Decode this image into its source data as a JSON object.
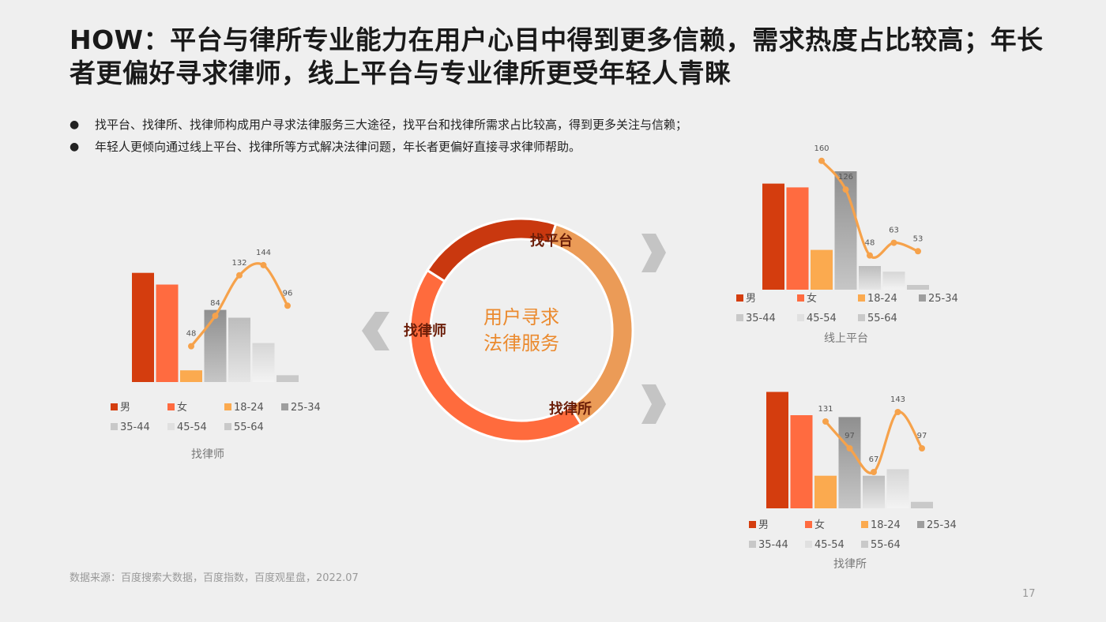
{
  "title": "HOW：平台与律所专业能力在用户心目中得到更多信赖，需求热度占比较高；年长者更偏好寻求律师，线上平台与专业律所更受年轻人青睐",
  "bullets": [
    "找平台、找律所、找律师构成用户寻求法律服务三大途径，找平台和找律所需求占比较高，得到更多关注与信赖；",
    "年轻人更倾向通过线上平台、找律所等方式解决法律问题，年长者更偏好直接寻求律师帮助。"
  ],
  "source": "数据来源：百度搜索大数据，百度指数，百度观星盘，2022.07",
  "page_number": "17",
  "donut": {
    "center_line1": "用户寻求",
    "center_line2": "法律服务",
    "segments": [
      {
        "label": "找平台",
        "value": 36,
        "color": "#EB9B57"
      },
      {
        "label": "找律所",
        "value": 43,
        "color": "#FF6B3D"
      },
      {
        "label": "找律师",
        "value": 21,
        "color": "#C9380F"
      }
    ]
  },
  "colors": {
    "male": "#D43D0E",
    "female": "#FF6B40",
    "a18": "#FBAA4F",
    "a25": "#9E9E9E",
    "a35": "#C8C8C8",
    "a45": "#E0E0E0",
    "a55": "#C9C9C9",
    "line": "#F6A24B",
    "donut_text": "#EB8A2E",
    "arrow": "#C4C4C4"
  },
  "chart_data": [
    {
      "type": "bar",
      "title": "找律师",
      "categories": [
        "男",
        "女",
        "18-24",
        "25-34",
        "35-44",
        "45-54",
        "55-64"
      ],
      "values": [
        112,
        100,
        12,
        74,
        66,
        40,
        7
      ],
      "line": {
        "categories": [
          "18-24",
          "25-34",
          "35-44",
          "45-54",
          "55-64"
        ],
        "values": [
          48,
          84,
          132,
          144,
          96
        ],
        "labels": [
          "48",
          "84",
          "132",
          "144",
          "96"
        ]
      },
      "legend": [
        "男",
        "女",
        "18-24",
        "25-34",
        "35-44",
        "45-54",
        "55-64"
      ]
    },
    {
      "type": "bar",
      "title": "线上平台",
      "categories": [
        "男",
        "女",
        "18-24",
        "25-34",
        "35-44",
        "45-54",
        "55-64"
      ],
      "values": [
        112,
        108,
        42,
        125,
        25,
        19,
        5
      ],
      "line": {
        "categories": [
          "18-24",
          "25-34",
          "35-44",
          "45-54",
          "55-64"
        ],
        "values": [
          160,
          126,
          48,
          63,
          53
        ],
        "labels": [
          "160",
          "126",
          "48",
          "63",
          "53"
        ]
      },
      "legend": [
        "男",
        "女",
        "18-24",
        "25-34",
        "35-44",
        "45-54",
        "55-64"
      ]
    },
    {
      "type": "bar",
      "title": "找律所",
      "categories": [
        "男",
        "女",
        "18-24",
        "25-34",
        "35-44",
        "45-54",
        "55-64"
      ],
      "values": [
        125,
        100,
        35,
        98,
        35,
        42,
        7
      ],
      "line": {
        "categories": [
          "18-24",
          "25-34",
          "35-44",
          "45-54",
          "55-64"
        ],
        "values": [
          131,
          97,
          67,
          143,
          97
        ],
        "labels": [
          "131",
          "97",
          "67",
          "143",
          "97"
        ]
      },
      "legend": [
        "男",
        "女",
        "18-24",
        "25-34",
        "35-44",
        "45-54",
        "55-64"
      ]
    }
  ]
}
